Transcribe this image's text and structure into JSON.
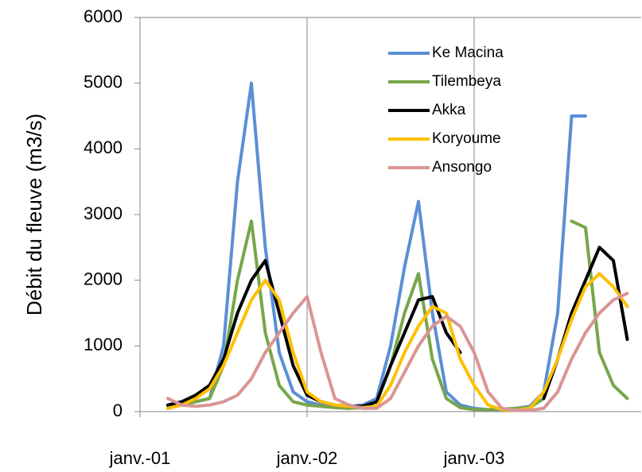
{
  "chart_data": {
    "type": "line",
    "y_label": "Débit du fleuve (m3/s)",
    "x": [
      "2001-01",
      "2001-02",
      "2001-03",
      "2001-04",
      "2001-05",
      "2001-06",
      "2001-07",
      "2001-08",
      "2001-09",
      "2001-10",
      "2001-11",
      "2001-12",
      "2002-01",
      "2002-02",
      "2002-03",
      "2002-04",
      "2002-05",
      "2002-06",
      "2002-07",
      "2002-08",
      "2002-09",
      "2002-10",
      "2002-11",
      "2002-12",
      "2003-01",
      "2003-02",
      "2003-03",
      "2003-04",
      "2003-05",
      "2003-06",
      "2003-07",
      "2003-08",
      "2003-09",
      "2003-10",
      "2003-11",
      "2003-12"
    ],
    "series": [
      {
        "name": "Ke Macina",
        "color": "#5b8fd6",
        "values": [
          null,
          null,
          50,
          100,
          150,
          200,
          1000,
          3500,
          5000,
          2500,
          900,
          300,
          150,
          100,
          100,
          80,
          100,
          200,
          1000,
          2200,
          3200,
          1500,
          300,
          100,
          50,
          30,
          30,
          50,
          80,
          300,
          1500,
          4500,
          4500,
          null,
          null,
          null
        ]
      },
      {
        "name": "Tilembeya",
        "color": "#77a64a",
        "values": [
          null,
          null,
          80,
          100,
          150,
          200,
          700,
          2000,
          2900,
          1200,
          400,
          150,
          100,
          80,
          60,
          50,
          60,
          150,
          700,
          1500,
          2100,
          800,
          200,
          60,
          30,
          30,
          40,
          50,
          60,
          200,
          null,
          2900,
          2800,
          900,
          400,
          200
        ]
      },
      {
        "name": "Akka",
        "color": "#000000",
        "values": [
          null,
          null,
          100,
          150,
          250,
          400,
          800,
          1500,
          2000,
          2300,
          1500,
          700,
          250,
          150,
          100,
          80,
          80,
          150,
          700,
          1200,
          1700,
          1750,
          1200,
          900,
          null,
          null,
          null,
          null,
          null,
          200,
          800,
          1500,
          2000,
          2500,
          2300,
          1100
        ]
      },
      {
        "name": "Koryoume",
        "color": "#ffc000",
        "values": [
          null,
          null,
          50,
          100,
          200,
          350,
          700,
          1200,
          1700,
          2000,
          1700,
          900,
          300,
          150,
          100,
          80,
          60,
          80,
          400,
          900,
          1300,
          1600,
          1500,
          800,
          400,
          100,
          30,
          20,
          50,
          300,
          800,
          1400,
          1900,
          2100,
          1900,
          1600
        ]
      },
      {
        "name": "Ansongo",
        "color": "#d99594",
        "values": [
          null,
          null,
          200,
          100,
          80,
          100,
          150,
          250,
          500,
          900,
          1200,
          1500,
          1750,
          900,
          200,
          100,
          50,
          50,
          200,
          600,
          1000,
          1300,
          1450,
          1300,
          900,
          300,
          50,
          20,
          20,
          50,
          300,
          800,
          1200,
          1500,
          1700,
          1800
        ]
      }
    ],
    "xlim": [
      "2001-01",
      "2004-01"
    ],
    "xticks": [
      {
        "value": "2001-01",
        "label": "janv.-01"
      },
      {
        "value": "2002-01",
        "label": "janv.-02"
      },
      {
        "value": "2003-01",
        "label": "janv.-03"
      }
    ],
    "ylim": [
      0,
      6000
    ],
    "yticks": [
      0,
      1000,
      2000,
      3000,
      4000,
      5000,
      6000
    ],
    "grid": true,
    "legend": "top-right"
  }
}
